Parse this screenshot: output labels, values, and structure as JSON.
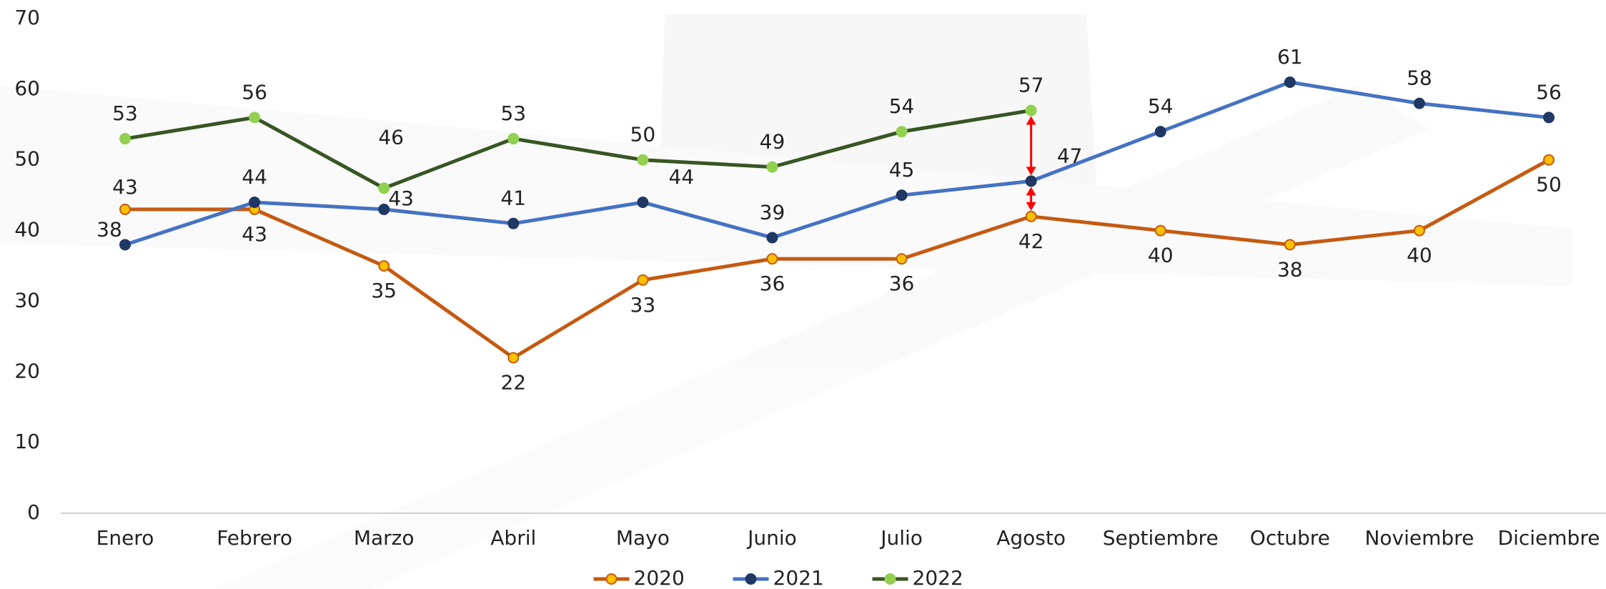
{
  "chart_data": {
    "type": "line",
    "categories": [
      "Enero",
      "Febrero",
      "Marzo",
      "Abril",
      "Mayo",
      "Junio",
      "Julio",
      "Agosto",
      "Septiembre",
      "Octubre",
      "Noviembre",
      "Diciembre"
    ],
    "series": [
      {
        "name": "2020",
        "color": "#c55a11",
        "marker_color": "#ffc000",
        "values": [
          43,
          43,
          35,
          22,
          33,
          36,
          36,
          42,
          40,
          38,
          40,
          50
        ]
      },
      {
        "name": "2021",
        "color": "#4472c4",
        "marker_color": "#1f3864",
        "values": [
          38,
          44,
          43,
          41,
          44,
          39,
          45,
          47,
          54,
          61,
          58,
          56
        ]
      },
      {
        "name": "2022",
        "color": "#375623",
        "marker_color": "#92d050",
        "values": [
          53,
          56,
          46,
          53,
          50,
          49,
          54,
          57,
          null,
          null,
          null,
          null
        ]
      }
    ],
    "ylim": [
      0,
      70
    ],
    "yticks": [
      0,
      10,
      20,
      30,
      40,
      50,
      60,
      70
    ],
    "grid": false,
    "legend": "bottom"
  }
}
